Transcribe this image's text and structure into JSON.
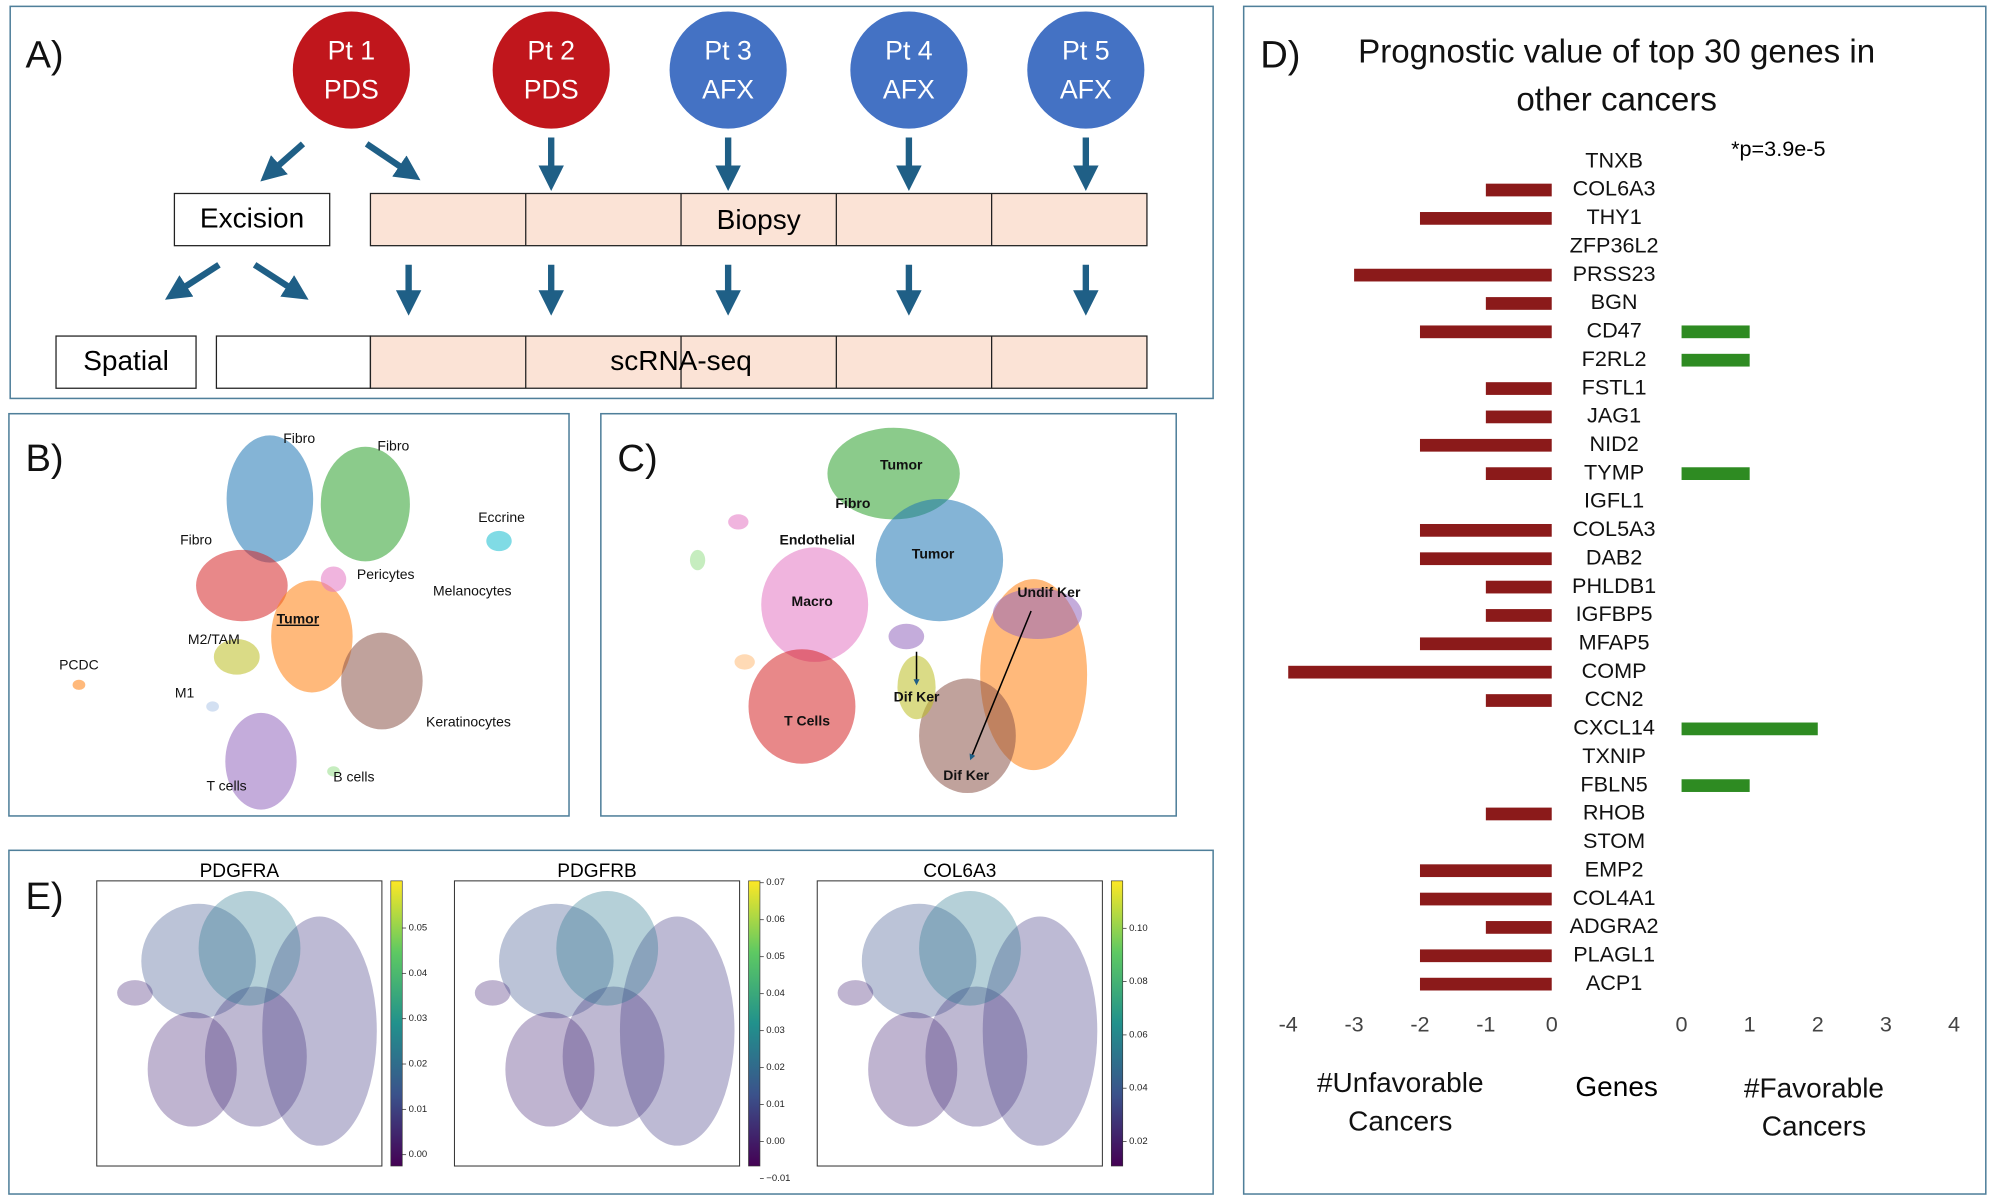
{
  "panel_a": {
    "label": "A)",
    "patients": [
      {
        "id": "Pt 1",
        "group": "PDS",
        "color": "#c0161c"
      },
      {
        "id": "Pt 2",
        "group": "PDS",
        "color": "#c0161c"
      },
      {
        "id": "Pt 3",
        "group": "AFX",
        "color": "#4472c4"
      },
      {
        "id": "Pt 4",
        "group": "AFX",
        "color": "#4472c4"
      },
      {
        "id": "Pt 5",
        "group": "AFX",
        "color": "#4472c4"
      }
    ],
    "excision": "Excision",
    "biopsy": "Biopsy",
    "spatial": "Spatial",
    "scrnaseq": "scRNA-seq"
  },
  "panel_b": {
    "label": "B)",
    "clusters": [
      "Fibro",
      "Fibro",
      "Eccrine",
      "Fibro",
      "Pericytes",
      "Melanocytes",
      "Tumor",
      "M2/TAM",
      "PCDC",
      "M1",
      "Keratinocytes",
      "T cells",
      "B cells"
    ]
  },
  "panel_c": {
    "label": "C)",
    "clusters": [
      "Tumor",
      "Fibro",
      "Endothelial",
      "Tumor",
      "Undif Ker",
      "Macro",
      "Dif Ker",
      "T Cells",
      "Dif Ker"
    ]
  },
  "panel_e": {
    "label": "E)",
    "plots": [
      {
        "title": "PDGFRA",
        "clim": [
          -0.0025,
          0.0604
        ],
        "ticks": [
          {
            "value": 0,
            "label": "0.00"
          },
          0.01,
          0.02,
          0.03,
          0.04,
          0.05
        ]
      },
      {
        "title": "PDGFRB",
        "clim": [
          -0.0066,
          0.0705
        ],
        "ticks": [
          {
            "value": -0.01,
            "label": "−0.01"
          },
          {
            "value": 0,
            "label": "0.00"
          },
          0.01,
          0.02,
          0.03,
          0.04,
          0.05,
          0.06,
          0.07
        ]
      },
      {
        "title": "COL6A3",
        "clim": [
          0.0108,
          0.1178
        ],
        "ticks": [
          0.02,
          0.04,
          0.06,
          0.08,
          {
            "value": 0.1,
            "label": "0.10"
          }
        ]
      }
    ]
  },
  "chart_data": {
    "type": "bar",
    "orientation": "horizontal",
    "panel_label": "D)",
    "title": "Prognostic value of top 30 genes in other cancers",
    "annotation": "*p=3.9e-5",
    "category_label": "Genes",
    "categories": [
      "TNXB",
      "COL6A3",
      "THY1",
      "ZFP36L2",
      "PRSS23",
      "BGN",
      "CD47",
      "F2RL2",
      "FSTL1",
      "JAG1",
      "NID2",
      "TYMP",
      "IGFL1",
      "COL5A3",
      "DAB2",
      "PHLDB1",
      "IGFBP5",
      "MFAP5",
      "COMP",
      "CCN2",
      "CXCL14",
      "TXNIP",
      "FBLN5",
      "RHOB",
      "STOM",
      "EMP2",
      "COL4A1",
      "ADGRA2",
      "PLAGL1",
      "ACP1"
    ],
    "series": [
      {
        "name": "#Unfavorable Cancers",
        "color": "#8b1a1a",
        "values": [
          0,
          -1,
          -2,
          0,
          -3,
          -1,
          -2,
          0,
          -1,
          -1,
          -2,
          -1,
          0,
          -2,
          -2,
          -1,
          -1,
          -2,
          -4,
          -1,
          0,
          0,
          0,
          -1,
          0,
          -2,
          -2,
          -1,
          -2,
          -2
        ]
      },
      {
        "name": "#Favorable Cancers",
        "color": "#2e8b22",
        "axis": "x2",
        "values": [
          0,
          0,
          0,
          0,
          0,
          0,
          1,
          1,
          0,
          0,
          0,
          1,
          0,
          0,
          0,
          0,
          0,
          0,
          0,
          0,
          2,
          0,
          1,
          0,
          0,
          0,
          0,
          0,
          0,
          0
        ]
      }
    ],
    "xlim": [
      -4,
      0
    ],
    "xticks": [
      -4,
      -3,
      -2,
      -1,
      0
    ],
    "x2lim": [
      0,
      4
    ],
    "x2ticks": [
      0,
      1,
      2,
      3,
      4
    ]
  }
}
